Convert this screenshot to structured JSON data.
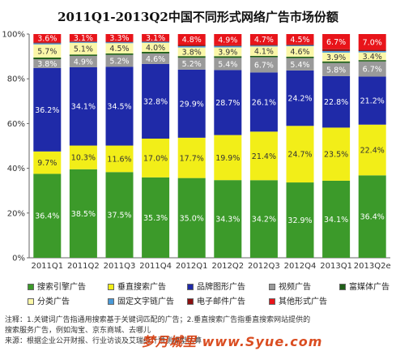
{
  "chart_data": {
    "type": "bar",
    "stacked": true,
    "title": "2011Q1-2013Q2中国不同形式网络广告市场份额",
    "ylim": [
      0,
      100
    ],
    "yticks": [
      "0%",
      "20%",
      "40%",
      "60%",
      "80%",
      "100%"
    ],
    "grid": false,
    "legend_position": "bottom",
    "categories": [
      "2011Q1",
      "2011Q2",
      "2011Q3",
      "2011Q4",
      "2012Q1",
      "2012Q2",
      "2012Q3",
      "2012Q4",
      "2013Q1",
      "2013Q2e"
    ],
    "series": [
      {
        "name": "搜索引擎广告",
        "color": "#3c9a2a",
        "values": [
          36.4,
          38.5,
          37.5,
          35.3,
          35.0,
          34.3,
          34.2,
          32.9,
          34.1,
          36.4
        ],
        "labels": [
          "36.4%",
          "38.5%",
          "37.5%",
          "35.3%",
          "35.0%",
          "34.3%",
          "34.2%",
          "32.9%",
          "34.1%",
          "36.4%"
        ]
      },
      {
        "name": "垂直搜索广告",
        "color": "#f2ee18",
        "values": [
          9.7,
          10.3,
          11.6,
          17.0,
          17.7,
          19.9,
          21.4,
          24.7,
          23.5,
          22.4
        ],
        "labels": [
          "9.7%",
          "10.3%",
          "11.6%",
          "17.0%",
          "17.7%",
          "19.9%",
          "21.4%",
          "24.7%",
          "23.5%",
          "22.4%"
        ]
      },
      {
        "name": "品牌图形广告",
        "color": "#1f2aa8",
        "values": [
          36.2,
          34.1,
          34.5,
          32.8,
          29.9,
          28.7,
          26.1,
          24.2,
          22.8,
          21.2
        ],
        "labels": [
          "36.2%",
          "34.1%",
          "34.5%",
          "32.8%",
          "29.9%",
          "28.7%",
          "26.1%",
          "24.2%",
          "22.8%",
          "21.2%"
        ]
      },
      {
        "name": "视频广告",
        "color": "#9a9a9a",
        "values": [
          3.8,
          4.9,
          5.2,
          4.6,
          5.2,
          5.4,
          6.7,
          5.4,
          5.8,
          6.7
        ],
        "labels": [
          "3.8%",
          "4.9%",
          "5.2%",
          "4.6%",
          "5.2%",
          "5.4%",
          "6.7%",
          "5.4%",
          "5.8%",
          "6.7%"
        ]
      },
      {
        "name": "富媒体广告",
        "color": "#1f5f18",
        "values": [
          0.7,
          0.6,
          0.6,
          0.7,
          0.7,
          0.7,
          0.6,
          0.6,
          0.7,
          0.6
        ],
        "labels": [
          "",
          "",
          "",
          "",
          "",
          "",
          "",
          "",
          "",
          ""
        ]
      },
      {
        "name": "分类广告",
        "color": "#fbf7a8",
        "values": [
          5.7,
          5.1,
          4.5,
          4.0,
          3.8,
          3.9,
          4.1,
          4.6,
          3.9,
          3.4
        ],
        "labels": [
          "5.7%",
          "5.1%",
          "4.5%",
          "4.0%",
          "3.8%",
          "3.9%",
          "4.1%",
          "4.6%",
          "3.9%",
          "3.4%"
        ]
      },
      {
        "name": "固定文字链广告",
        "color": "#4a9ad8",
        "values": [
          0.5,
          0.4,
          0.4,
          0.4,
          0.6,
          0.6,
          0.4,
          0.4,
          0.7,
          0.6
        ],
        "labels": [
          "",
          "",
          "",
          "",
          "",
          "",
          "",
          "",
          "",
          ""
        ]
      },
      {
        "name": "电子邮件广告",
        "color": "#8a1010",
        "values": [
          0.4,
          0.3,
          0.3,
          0.3,
          0.5,
          0.4,
          0.4,
          0.4,
          0.8,
          0.5
        ],
        "labels": [
          "",
          "",
          "",
          "",
          "",
          "",
          "",
          "",
          "",
          ""
        ]
      },
      {
        "name": "其他形式广告",
        "color": "#e8141a",
        "values": [
          3.6,
          3.1,
          3.3,
          3.1,
          4.8,
          4.9,
          4.7,
          4.5,
          6.7,
          7.0
        ],
        "labels": [
          "3.6%",
          "3.1%",
          "3.3%",
          "3.1%",
          "4.8%",
          "4.9%",
          "4.7%",
          "4.5%",
          "6.7%",
          "7.0%"
        ]
      }
    ]
  },
  "footer": {
    "note_line1": "注释：1.关键词广告指通用搜索基于关键词匹配的广告；2.垂直搜索广告指垂直搜索网站提供的",
    "note_line2": "搜索服务广告，例如淘宝、京东商城、去哪儿",
    "source_line": "来源：根据企业公开财报、行业访谈及艾瑞统计预测模型估算"
  },
  "watermark_text": "梦月城里 www.Syue.com"
}
